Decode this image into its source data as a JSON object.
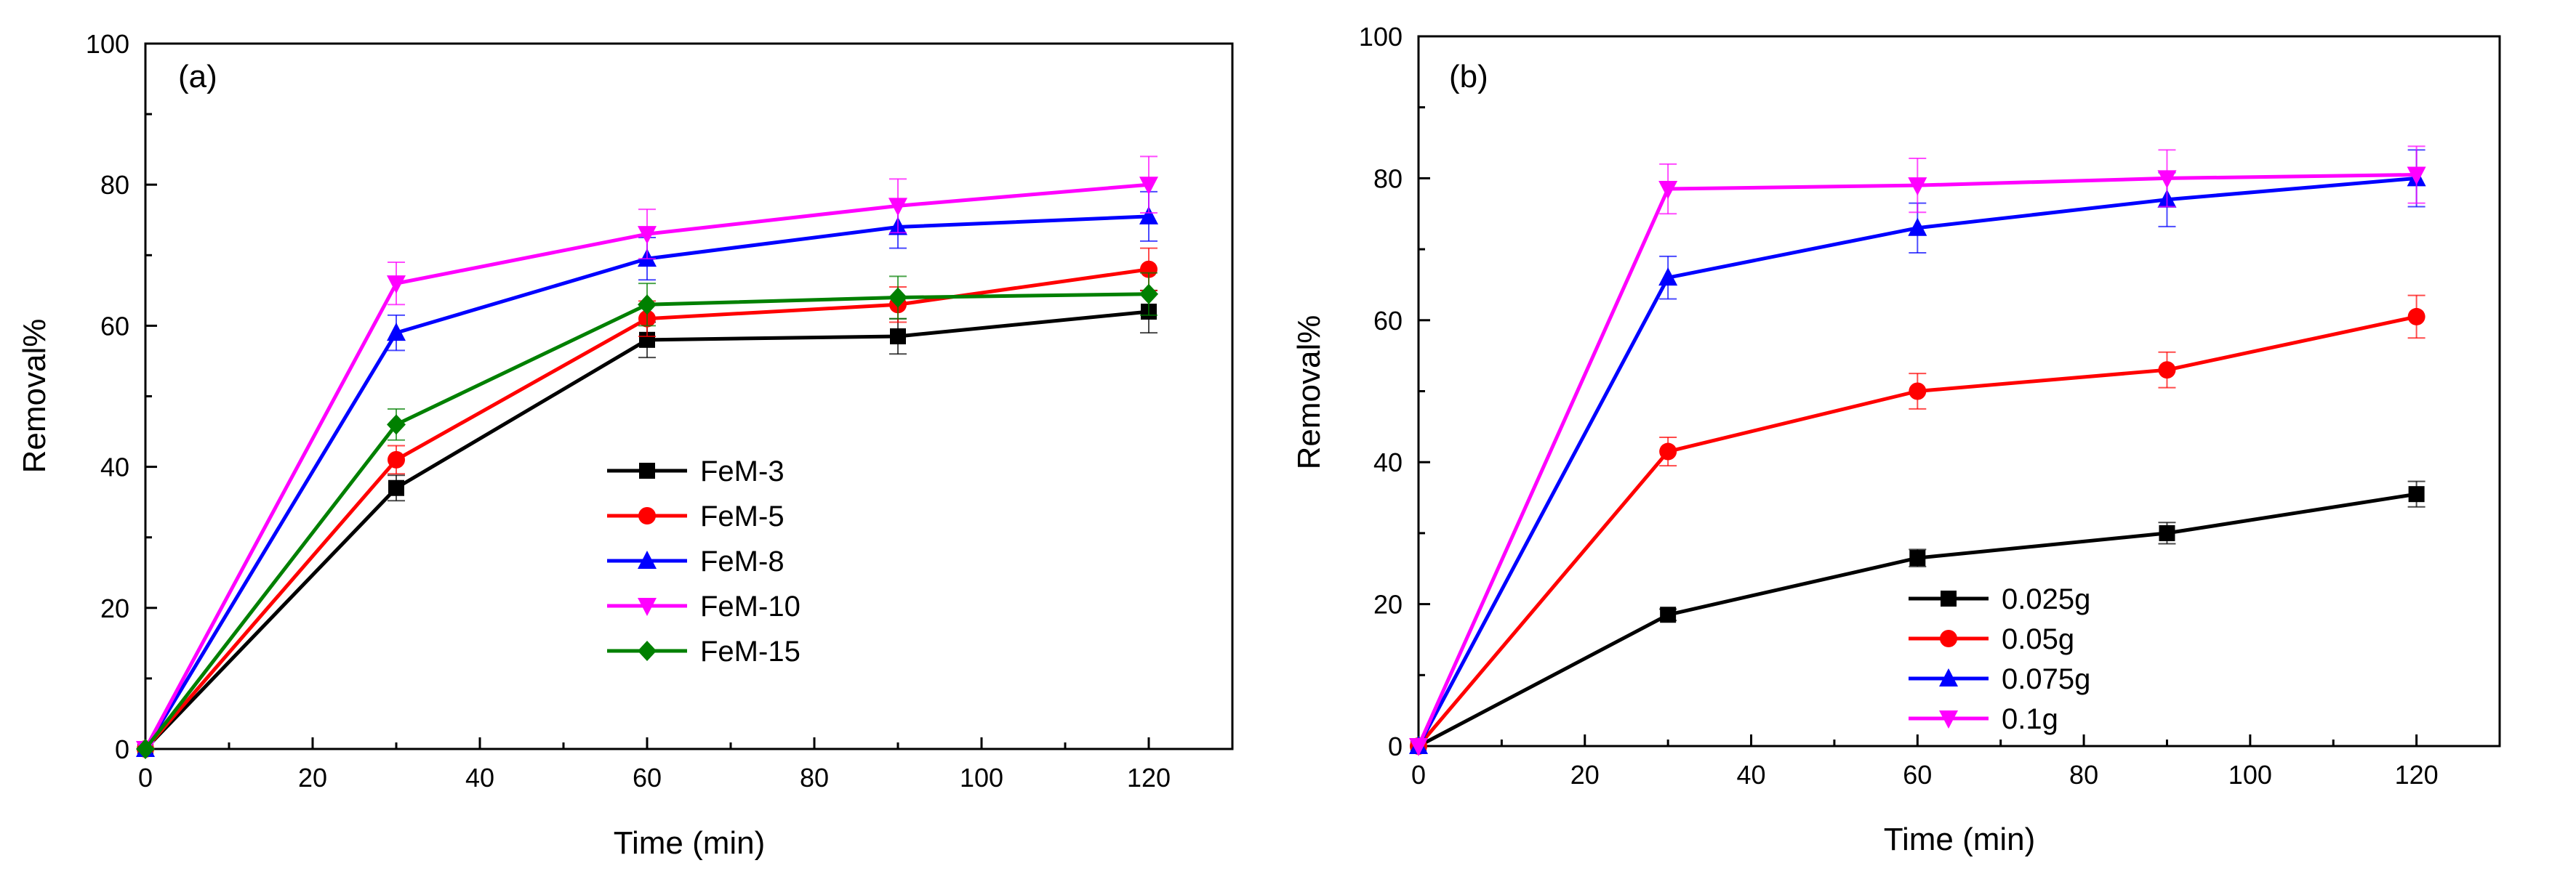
{
  "chart_data": [
    {
      "id": "a",
      "type": "line",
      "panel_label": "(a)",
      "xlabel": "Time (min)",
      "ylabel": "Removal%",
      "xlim": [
        0,
        130
      ],
      "ylim": [
        0,
        100
      ],
      "xticks": [
        0,
        20,
        40,
        60,
        80,
        100,
        120
      ],
      "yticks": [
        0,
        20,
        40,
        60,
        80,
        100
      ],
      "x": [
        0,
        30,
        60,
        90,
        120
      ],
      "legend_position": "center",
      "series": [
        {
          "name": "FeM-3",
          "color": "#000000",
          "marker": "square",
          "values": [
            0,
            37,
            58,
            58.5,
            62
          ],
          "errors": [
            0,
            1.8,
            2.5,
            2.5,
            3
          ]
        },
        {
          "name": "FeM-5",
          "color": "#ff0000",
          "marker": "circle",
          "values": [
            0,
            41,
            61,
            63,
            68
          ],
          "errors": [
            0,
            2,
            2.5,
            2.5,
            3
          ]
        },
        {
          "name": "FeM-8",
          "color": "#0000ff",
          "marker": "triangle-up",
          "values": [
            0,
            59,
            69.5,
            74,
            75.5
          ],
          "errors": [
            0,
            2.5,
            3,
            3,
            3.5
          ]
        },
        {
          "name": "FeM-10",
          "color": "#ff00ff",
          "marker": "triangle-down",
          "values": [
            0,
            66,
            73,
            77,
            80
          ],
          "errors": [
            0,
            3,
            3.5,
            3.8,
            4
          ]
        },
        {
          "name": "FeM-15",
          "color": "#008000",
          "marker": "diamond",
          "values": [
            0,
            46,
            63,
            64,
            64.5
          ],
          "errors": [
            0,
            2.2,
            3,
            3,
            3
          ]
        }
      ]
    },
    {
      "id": "b",
      "type": "line",
      "panel_label": "(b)",
      "xlabel": "Time (min)",
      "ylabel": "Removal%",
      "xlim": [
        0,
        130
      ],
      "ylim": [
        0,
        100
      ],
      "xticks": [
        0,
        20,
        40,
        60,
        80,
        100,
        120
      ],
      "yticks": [
        0,
        20,
        40,
        60,
        80,
        100
      ],
      "x": [
        0,
        30,
        60,
        90,
        120
      ],
      "legend_position": "bottom-center",
      "series": [
        {
          "name": "0.025g",
          "color": "#000000",
          "marker": "square",
          "values": [
            0,
            18.5,
            26.5,
            30,
            35.5
          ],
          "errors": [
            0,
            0.8,
            1.2,
            1.5,
            1.8
          ]
        },
        {
          "name": "0.05g",
          "color": "#ff0000",
          "marker": "circle",
          "values": [
            0,
            41.5,
            50,
            53,
            60.5
          ],
          "errors": [
            0,
            2,
            2.5,
            2.5,
            3
          ]
        },
        {
          "name": "0.075g",
          "color": "#0000ff",
          "marker": "triangle-up",
          "values": [
            0,
            66,
            73,
            77,
            80
          ],
          "errors": [
            0,
            3,
            3.5,
            3.8,
            4
          ]
        },
        {
          "name": "0.1g",
          "color": "#ff00ff",
          "marker": "triangle-down",
          "values": [
            0,
            78.5,
            79,
            80,
            80.5
          ],
          "errors": [
            0,
            3.5,
            3.8,
            4,
            4
          ]
        }
      ]
    }
  ]
}
